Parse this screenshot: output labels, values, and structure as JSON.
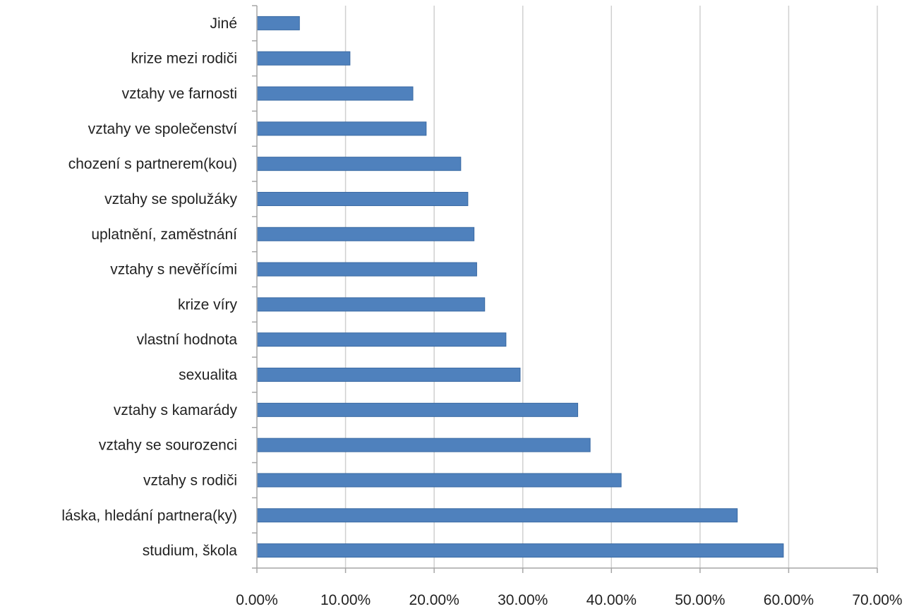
{
  "chart_data": {
    "type": "bar",
    "orientation": "horizontal",
    "categories": [
      "Jiné",
      "krize mezi rodiči",
      "vztahy ve farnosti",
      "vztahy ve společenství",
      "chození s partnerem(kou)",
      "vztahy se spolužáky",
      "uplatnění, zaměstnání",
      "vztahy s nevěřícími",
      "krize víry",
      "vlastní hodnota",
      "sexualita",
      "vztahy s kamarády",
      "vztahy se sourozenci",
      "vztahy s rodiči",
      "láska, hledání partnera(ky)",
      "studium, škola"
    ],
    "values": [
      4.8,
      10.5,
      17.6,
      19.1,
      23.0,
      23.8,
      24.5,
      24.8,
      25.7,
      28.1,
      29.7,
      36.2,
      37.6,
      41.1,
      54.2,
      59.4
    ],
    "xticks": [
      "0.00%",
      "10.00%",
      "20.00%",
      "30.00%",
      "40.00%",
      "50.00%",
      "60.00%",
      "70.00%"
    ],
    "xlim": [
      0,
      70
    ],
    "grid": true,
    "legend": "none",
    "colors": {
      "bar": "#4f81bd",
      "bar_edge": "#3a6aa3",
      "grid": "#d0d0d0",
      "axis": "#a6a6a6"
    }
  }
}
